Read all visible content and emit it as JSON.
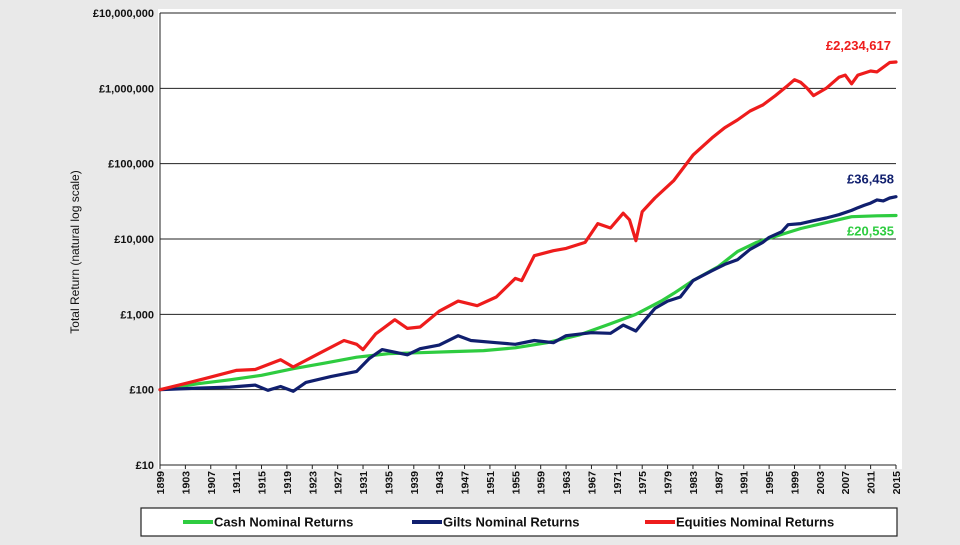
{
  "chart_data": {
    "type": "line",
    "ylabel": "Total Return (natural log scale)",
    "xlabel": "",
    "yscale": "log",
    "ylim": [
      10,
      10000000
    ],
    "xlim": [
      1899,
      2015
    ],
    "grid": true,
    "legend_position": "bottom",
    "y_tick_values": [
      10,
      100,
      1000,
      10000,
      100000,
      1000000,
      10000000
    ],
    "y_tick_labels": [
      "£10",
      "£100",
      "£1,000",
      "£10,000",
      "£100,000",
      "£1,000,000",
      "£10,000,000"
    ],
    "x_ticks": [
      "1899",
      "1903",
      "1907",
      "1911",
      "1915",
      "1919",
      "1923",
      "1927",
      "1931",
      "1935",
      "1939",
      "1943",
      "1947",
      "1951",
      "1955",
      "1959",
      "1963",
      "1967",
      "1971",
      "1975",
      "1979",
      "1983",
      "1987",
      "1991",
      "1995",
      "1999",
      "2003",
      "2007",
      "2011",
      "2015"
    ],
    "series": [
      {
        "name": "Cash Nominal Returns",
        "color": "#2ecc40",
        "end_label": "£20,535",
        "points": [
          [
            1899,
            100
          ],
          [
            1905,
            120
          ],
          [
            1910,
            135
          ],
          [
            1915,
            155
          ],
          [
            1920,
            190
          ],
          [
            1925,
            225
          ],
          [
            1930,
            270
          ],
          [
            1935,
            300
          ],
          [
            1940,
            310
          ],
          [
            1945,
            320
          ],
          [
            1950,
            330
          ],
          [
            1955,
            360
          ],
          [
            1960,
            420
          ],
          [
            1965,
            530
          ],
          [
            1970,
            750
          ],
          [
            1974,
            1000
          ],
          [
            1978,
            1500
          ],
          [
            1980,
            1900
          ],
          [
            1983,
            2800
          ],
          [
            1987,
            4300
          ],
          [
            1990,
            6800
          ],
          [
            1993,
            9000
          ],
          [
            1997,
            11500
          ],
          [
            2000,
            13800
          ],
          [
            2004,
            16500
          ],
          [
            2008,
            19800
          ],
          [
            2012,
            20300
          ],
          [
            2015,
            20535
          ]
        ]
      },
      {
        "name": "Gilts Nominal Returns",
        "color": "#101f6e",
        "end_label": "£36,458",
        "points": [
          [
            1899,
            100
          ],
          [
            1905,
            105
          ],
          [
            1910,
            108
          ],
          [
            1914,
            115
          ],
          [
            1916,
            98
          ],
          [
            1918,
            110
          ],
          [
            1920,
            95
          ],
          [
            1922,
            125
          ],
          [
            1926,
            150
          ],
          [
            1930,
            175
          ],
          [
            1932,
            260
          ],
          [
            1934,
            340
          ],
          [
            1938,
            290
          ],
          [
            1940,
            350
          ],
          [
            1943,
            390
          ],
          [
            1946,
            520
          ],
          [
            1948,
            450
          ],
          [
            1952,
            420
          ],
          [
            1955,
            400
          ],
          [
            1958,
            450
          ],
          [
            1961,
            420
          ],
          [
            1963,
            520
          ],
          [
            1967,
            570
          ],
          [
            1970,
            560
          ],
          [
            1972,
            720
          ],
          [
            1974,
            600
          ],
          [
            1975,
            760
          ],
          [
            1977,
            1200
          ],
          [
            1979,
            1500
          ],
          [
            1981,
            1700
          ],
          [
            1983,
            2800
          ],
          [
            1986,
            3800
          ],
          [
            1988,
            4600
          ],
          [
            1990,
            5300
          ],
          [
            1992,
            7300
          ],
          [
            1994,
            9000
          ],
          [
            1995,
            10500
          ],
          [
            1997,
            12500
          ],
          [
            1998,
            15500
          ],
          [
            2000,
            16000
          ],
          [
            2002,
            17500
          ],
          [
            2004,
            19000
          ],
          [
            2006,
            21000
          ],
          [
            2008,
            24000
          ],
          [
            2009,
            26000
          ],
          [
            2010,
            28000
          ],
          [
            2011,
            30000
          ],
          [
            2012,
            33000
          ],
          [
            2013,
            32000
          ],
          [
            2014,
            35000
          ],
          [
            2015,
            36458
          ]
        ]
      },
      {
        "name": "Equities Nominal Returns",
        "color": "#ee1c1c",
        "end_label": "£2,234,617",
        "points": [
          [
            1899,
            100
          ],
          [
            1902,
            115
          ],
          [
            1906,
            140
          ],
          [
            1911,
            180
          ],
          [
            1914,
            185
          ],
          [
            1918,
            250
          ],
          [
            1920,
            200
          ],
          [
            1924,
            300
          ],
          [
            1928,
            450
          ],
          [
            1930,
            400
          ],
          [
            1931,
            340
          ],
          [
            1933,
            550
          ],
          [
            1936,
            850
          ],
          [
            1938,
            650
          ],
          [
            1940,
            680
          ],
          [
            1943,
            1100
          ],
          [
            1946,
            1500
          ],
          [
            1949,
            1300
          ],
          [
            1952,
            1700
          ],
          [
            1955,
            3000
          ],
          [
            1956,
            2800
          ],
          [
            1958,
            6000
          ],
          [
            1961,
            7000
          ],
          [
            1963,
            7500
          ],
          [
            1966,
            9000
          ],
          [
            1968,
            16000
          ],
          [
            1970,
            14000
          ],
          [
            1972,
            22000
          ],
          [
            1973,
            18000
          ],
          [
            1974,
            9500
          ],
          [
            1975,
            23000
          ],
          [
            1977,
            35000
          ],
          [
            1980,
            60000
          ],
          [
            1983,
            130000
          ],
          [
            1986,
            220000
          ],
          [
            1988,
            300000
          ],
          [
            1990,
            380000
          ],
          [
            1992,
            500000
          ],
          [
            1994,
            600000
          ],
          [
            1996,
            800000
          ],
          [
            1998,
            1100000
          ],
          [
            1999,
            1300000
          ],
          [
            2000,
            1200000
          ],
          [
            2001,
            1000000
          ],
          [
            2002,
            800000
          ],
          [
            2004,
            1000000
          ],
          [
            2006,
            1400000
          ],
          [
            2007,
            1500000
          ],
          [
            2008,
            1150000
          ],
          [
            2009,
            1500000
          ],
          [
            2011,
            1700000
          ],
          [
            2012,
            1650000
          ],
          [
            2014,
            2200000
          ],
          [
            2015,
            2234617
          ]
        ]
      }
    ]
  }
}
